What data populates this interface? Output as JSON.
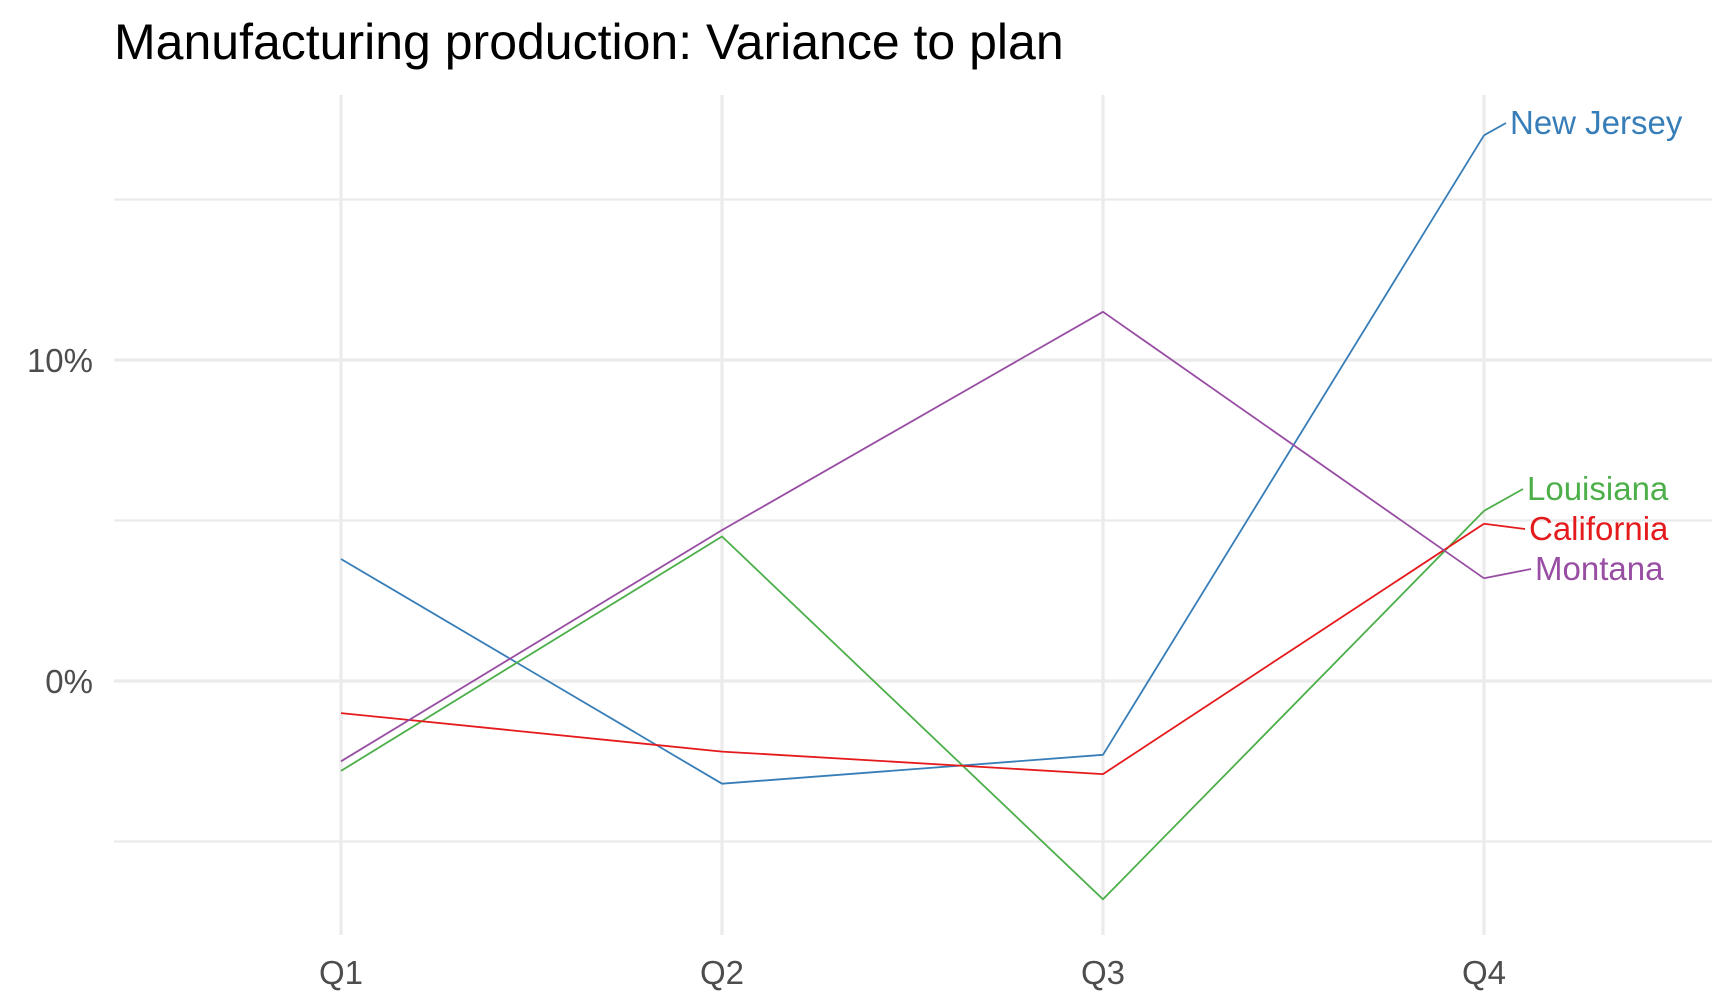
{
  "chart_data": {
    "type": "line",
    "title": "Manufacturing production: Variance to plan",
    "xlabel": "",
    "ylabel": "",
    "categories": [
      "Q1",
      "Q2",
      "Q3",
      "Q4"
    ],
    "ylim": [
      -8,
      18.5
    ],
    "y_ticks": [
      {
        "value": 0,
        "label": "0%"
      },
      {
        "value": 10,
        "label": "10%"
      }
    ],
    "y_minor_ticks": [
      -5,
      5,
      15
    ],
    "grid": true,
    "legend": "direct labels at right end of lines",
    "series": [
      {
        "name": "New Jersey",
        "color": "#377eb8",
        "values": [
          3.8,
          -3.2,
          -2.3,
          17.0
        ]
      },
      {
        "name": "Louisiana",
        "color": "#4daf4a",
        "values": [
          -2.8,
          4.5,
          -6.8,
          5.3
        ]
      },
      {
        "name": "California",
        "color": "#e41a1c",
        "values": [
          -1.0,
          -2.2,
          -2.9,
          4.9
        ]
      },
      {
        "name": "Montana",
        "color": "#984ea3",
        "values": [
          -2.5,
          4.7,
          11.5,
          3.2
        ]
      }
    ]
  }
}
